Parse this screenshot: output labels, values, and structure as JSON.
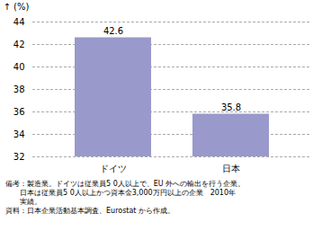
{
  "chart_data": {
    "type": "bar",
    "categories": [
      "ドイツ",
      "日本"
    ],
    "values": [
      42.6,
      35.8
    ],
    "color": "#9999cc",
    "ylabel": "(%)",
    "ylim": [
      32,
      44
    ],
    "yticks": [
      32,
      34,
      36,
      38,
      40,
      42,
      44
    ],
    "grid": true,
    "data_labels": true,
    "annotations": [
      "備考：製造業。ドイツは従業員5 0人以上で、EU 外への輸出を行う企業。",
      "　　日本は従業員5 0人以上かつ資本金3,000万円以上の企業　2010年",
      "　　実績。",
      "資料：日本企業活動基本調査、Eurostat から作成。"
    ]
  }
}
